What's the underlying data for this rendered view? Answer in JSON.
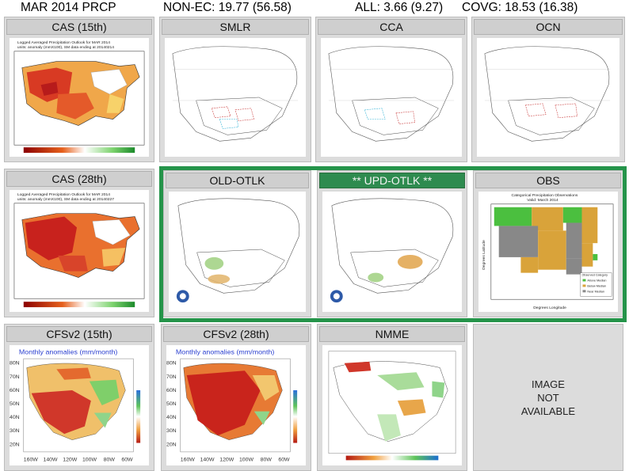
{
  "header": {
    "title": "MAR 2014 PRCP",
    "non_ec": "NON-EC: 19.77  (56.58)",
    "all": "ALL: 3.66  (9.27)",
    "covg": "COVG: 18.53  (16.38)"
  },
  "panels": {
    "cas15": {
      "title": "CAS (15th)",
      "cap1": "Logged Averaged Precipitation Outlook for MAR 2014",
      "cap2": "units: anomaly (mmX100), SM data ending at 20140214"
    },
    "smlr": {
      "title": "SMLR"
    },
    "cca": {
      "title": "CCA"
    },
    "ocn": {
      "title": "OCN"
    },
    "cas28": {
      "title": "CAS (28th)",
      "cap1": "Logged Averaged Precipitation Outlook for MAR 2014",
      "cap2": "units: anomaly (mmX100), SM data ending at 20140227"
    },
    "old_otlk": {
      "title": "OLD-OTLK"
    },
    "upd_otlk": {
      "title": "** UPD-OTLK **"
    },
    "obs": {
      "title": "OBS",
      "cap1": "Categorical Precipitation Observations",
      "cap2": "Valid: March 2014",
      "ylabel": "Degrees Latitude",
      "xlabel": "Degrees Longitude",
      "legend": [
        "Observed Category",
        "Above Median",
        "Below Median",
        "Near Median"
      ]
    },
    "cfs15": {
      "title": "CFSv2 (15th)",
      "subtitle": "Monthly anomalies (mm/month)"
    },
    "cfs28": {
      "title": "CFSv2 (28th)",
      "subtitle": "Monthly anomalies (mm/month)"
    },
    "nmme": {
      "title": "NMME"
    },
    "na": {
      "line1": "IMAGE",
      "line2": "NOT",
      "line3": "AVAILABLE"
    }
  },
  "cfs_axis": {
    "lat": [
      "80N",
      "70N",
      "60N",
      "50N",
      "40N",
      "30N",
      "20N"
    ],
    "lon": [
      "160W",
      "140W",
      "120W",
      "100W",
      "80W",
      "60W"
    ]
  },
  "colors": {
    "highlight": "#25944a",
    "panel_bg": "#dcdcdc",
    "wet": "#3fb24a",
    "dry": "#d9a33a",
    "red": "#d8342a"
  }
}
